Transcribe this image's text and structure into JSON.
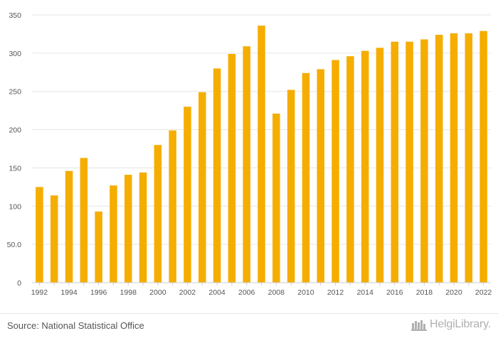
{
  "chart_data": {
    "type": "bar",
    "categories": [
      "1992",
      "1993",
      "1994",
      "1995",
      "1996",
      "1997",
      "1998",
      "1999",
      "2000",
      "2001",
      "2002",
      "2003",
      "2004",
      "2005",
      "2006",
      "2007",
      "2008",
      "2009",
      "2010",
      "2011",
      "2012",
      "2013",
      "2014",
      "2015",
      "2016",
      "2017",
      "2018",
      "2019",
      "2020",
      "2021",
      "2022"
    ],
    "values": [
      125,
      114,
      146,
      163,
      93,
      127,
      141,
      144,
      180,
      199,
      230,
      249,
      280,
      299,
      309,
      336,
      221,
      252,
      274,
      279,
      291,
      296,
      303,
      307,
      315,
      315,
      318,
      324,
      326,
      326,
      329
    ],
    "x_tick_labels": [
      "1992",
      "1994",
      "1996",
      "1998",
      "2000",
      "2002",
      "2004",
      "2006",
      "2008",
      "2010",
      "2012",
      "2014",
      "2016",
      "2018",
      "2020",
      "2022"
    ],
    "y_ticks": [
      0,
      50,
      100,
      150,
      200,
      250,
      300,
      350
    ],
    "y_tick_labels": [
      "0",
      "50.0",
      "100",
      "150",
      "200",
      "250",
      "300",
      "350"
    ],
    "ylim": [
      0,
      350
    ],
    "title": "",
    "xlabel": "",
    "ylabel": "",
    "grid": true,
    "bar_color": "#f5ad00"
  },
  "footer": {
    "source": "Source: National Statistical Office",
    "logo_text": "HelgiLibrary."
  },
  "icons": {
    "logo": "helgi-library-logo-icon"
  }
}
